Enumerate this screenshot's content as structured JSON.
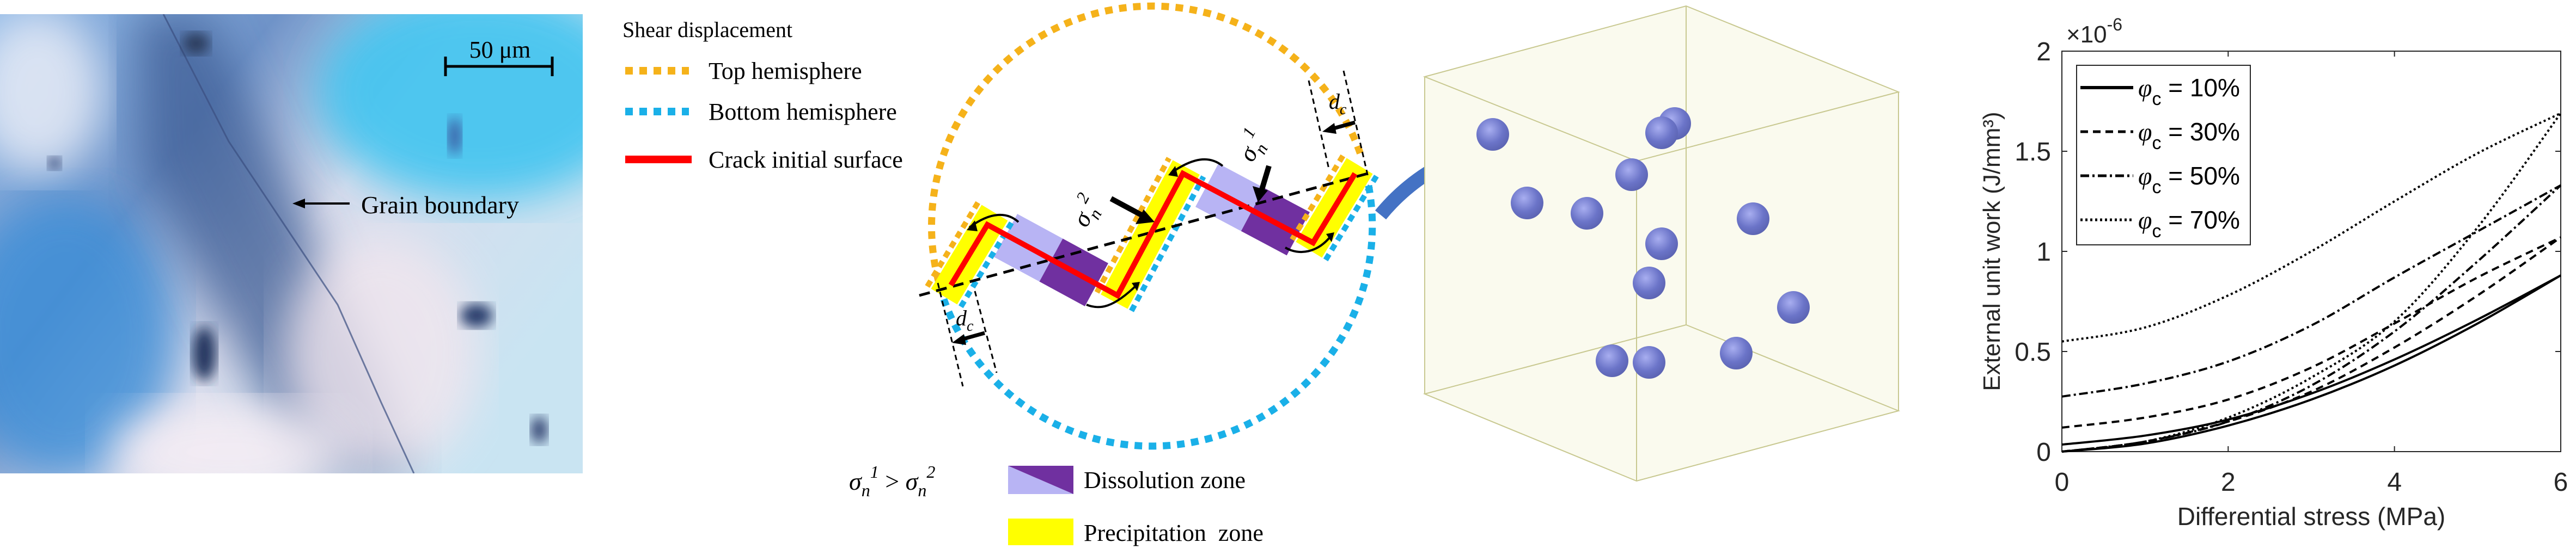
{
  "micrograph": {
    "scale_bar_label": "50 μm",
    "annotation": "Grain boundary"
  },
  "schematic": {
    "legend_title": "Shear displacement",
    "legend": [
      {
        "label": "Top hemisphere",
        "color": "#f5b21a",
        "style": "dotted"
      },
      {
        "label": "Bottom hemisphere",
        "color": "#1ab0e8",
        "style": "dotted"
      },
      {
        "label": "Crack initial surface",
        "color": "#ff0000",
        "style": "solid"
      }
    ],
    "sigma1": {
      "symbol": "σ",
      "sub": "n",
      "sup": "1"
    },
    "sigma2": {
      "symbol": "σ",
      "sub": "n",
      "sup": "2"
    },
    "dc": {
      "symbol": "d",
      "sub": "c"
    },
    "relation": {
      "left_sym": "σ",
      "left_sub": "n",
      "left_sup": "1",
      "op": " > ",
      "right_sym": "σ",
      "right_sub": "n",
      "right_sup": "2"
    },
    "zones": [
      {
        "label": "Dissolution zone",
        "colors": [
          "#b8b4f4",
          "#7030a0"
        ]
      },
      {
        "label": "Precipitation  zone",
        "colors": [
          "#ffff00"
        ]
      }
    ],
    "arrow_color": "#4472c4"
  },
  "cube": {
    "sphere_color": "#6b74c8",
    "box_color": "#c8c890"
  },
  "chart_data": {
    "type": "line",
    "xlabel": "Differential stress (MPa)",
    "ylabel": "External unit work (J/mm³)",
    "y_multiplier": "×10",
    "y_multiplier_exp": "-6",
    "xlim": [
      0,
      6
    ],
    "ylim": [
      0,
      2
    ],
    "xticks": [
      "0",
      "2",
      "4",
      "6"
    ],
    "yticks": [
      "0",
      "0.5",
      "1",
      "1.5",
      "2"
    ],
    "grid": false,
    "legend_position": "top-left",
    "x": [
      0,
      1,
      2,
      3,
      4,
      5,
      6
    ],
    "series": [
      {
        "name": "φc = 10%",
        "sym": "φ",
        "sub": "c",
        "rest": " = 10%",
        "dash": "solid",
        "upper": [
          0.035,
          0.08,
          0.16,
          0.29,
          0.46,
          0.66,
          0.88
        ],
        "lower": [
          0,
          0.04,
          0.13,
          0.26,
          0.43,
          0.64,
          0.88
        ]
      },
      {
        "name": "φc = 30%",
        "sym": "φ",
        "sub": "c",
        "rest": " = 30%",
        "dash": "dashed",
        "upper": [
          0.12,
          0.17,
          0.26,
          0.42,
          0.64,
          0.87,
          1.07
        ],
        "lower": [
          0,
          0.05,
          0.15,
          0.3,
          0.52,
          0.78,
          1.07
        ]
      },
      {
        "name": "φc = 50%",
        "sym": "φ",
        "sub": "c",
        "rest": " = 50%",
        "dash": "dashdot",
        "upper": [
          0.275,
          0.34,
          0.45,
          0.63,
          0.87,
          1.1,
          1.33
        ],
        "lower": [
          0,
          0.05,
          0.15,
          0.33,
          0.6,
          0.95,
          1.33
        ]
      },
      {
        "name": "φc = 70%",
        "sym": "φ",
        "sub": "c",
        "rest": " = 70%",
        "dash": "dotted",
        "upper": [
          0.55,
          0.62,
          0.78,
          1.0,
          1.25,
          1.49,
          1.69
        ],
        "lower": [
          0,
          0.05,
          0.17,
          0.37,
          0.65,
          1.12,
          1.69
        ]
      }
    ]
  }
}
